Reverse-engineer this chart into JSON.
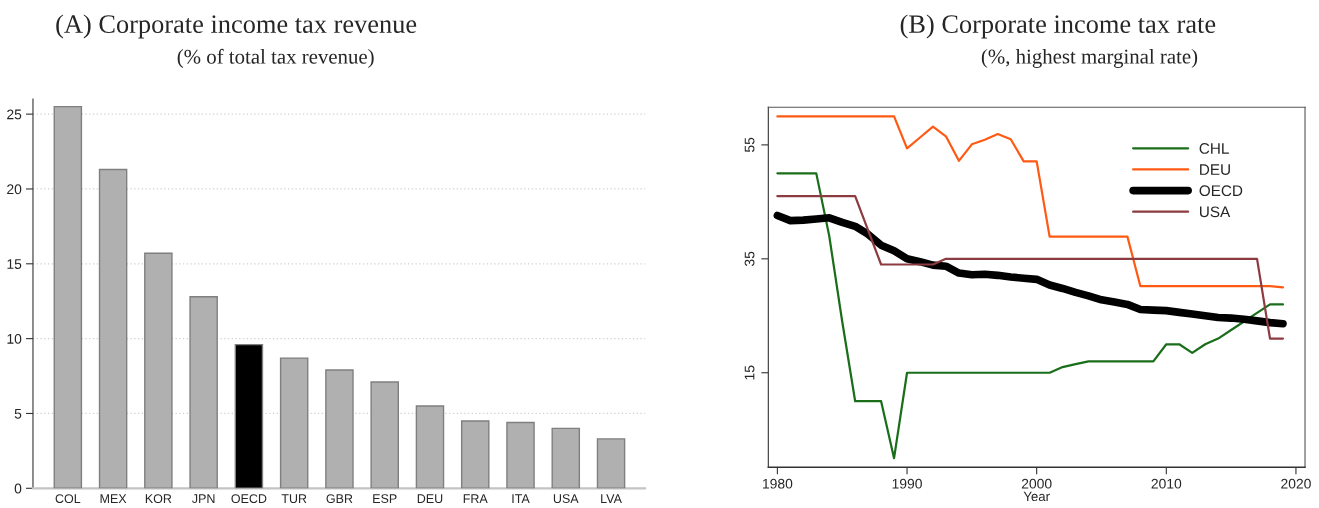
{
  "chart_data": [
    {
      "type": "bar",
      "title": "(A) Corporate income tax revenue",
      "subtitle": "(% of total tax revenue)",
      "categories": [
        "COL",
        "MEX",
        "KOR",
        "JPN",
        "OECD",
        "TUR",
        "GBR",
        "ESP",
        "DEU",
        "FRA",
        "ITA",
        "USA",
        "LVA"
      ],
      "values": [
        25.5,
        21.3,
        15.7,
        12.8,
        9.6,
        8.7,
        7.9,
        7.1,
        5.5,
        4.5,
        4.4,
        4.0,
        3.3
      ],
      "colors": [
        "#b0b0b0",
        "#b0b0b0",
        "#b0b0b0",
        "#b0b0b0",
        "#000000",
        "#b0b0b0",
        "#b0b0b0",
        "#b0b0b0",
        "#b0b0b0",
        "#b0b0b0",
        "#b0b0b0",
        "#b0b0b0",
        "#b0b0b0"
      ],
      "ylim": [
        0,
        26
      ],
      "yticks": [
        0,
        5,
        10,
        15,
        20,
        25
      ],
      "grid": "y"
    },
    {
      "type": "line",
      "title": "(B) Corporate income tax rate",
      "subtitle": "(%, highest marginal rate)",
      "xlabel": "Year",
      "x": [
        1980,
        1981,
        1982,
        1983,
        1984,
        1985,
        1986,
        1987,
        1988,
        1989,
        1990,
        1991,
        1992,
        1993,
        1994,
        1995,
        1996,
        1997,
        1998,
        1999,
        2000,
        2001,
        2002,
        2003,
        2004,
        2005,
        2006,
        2007,
        2008,
        2009,
        2010,
        2011,
        2012,
        2013,
        2014,
        2015,
        2016,
        2017,
        2018,
        2019
      ],
      "series": [
        {
          "name": "CHL",
          "color": "#1a6e1a",
          "values": [
            50,
            50,
            50,
            50,
            39,
            24,
            10,
            10,
            10,
            0,
            15,
            15,
            15,
            15,
            15,
            15,
            15,
            15,
            15,
            15,
            15,
            15,
            16,
            16.5,
            17,
            17,
            17,
            17,
            17,
            17,
            20,
            20,
            18.5,
            20,
            21,
            22.5,
            24,
            25.5,
            27,
            27
          ]
        },
        {
          "name": "DEU",
          "color": "#ff5a14",
          "values": [
            60,
            60,
            60,
            60,
            60,
            60,
            60,
            60,
            60,
            60,
            54.4,
            56.3,
            58.2,
            56.5,
            52.2,
            55.1,
            55.9,
            56.9,
            56.0,
            52.1,
            52.1,
            38.9,
            38.9,
            38.9,
            38.9,
            38.9,
            38.9,
            38.9,
            30.2,
            30.2,
            30.2,
            30.2,
            30.2,
            30.2,
            30.2,
            30.2,
            30.2,
            30.2,
            30.2,
            30.0
          ]
        },
        {
          "name": "OECD",
          "color": "#000000",
          "values": [
            42.6,
            41.7,
            41.8,
            42.0,
            42.2,
            41.4,
            40.7,
            39.3,
            37.4,
            36.4,
            35.0,
            34.5,
            33.9,
            33.7,
            32.5,
            32.2,
            32.3,
            32.1,
            31.8,
            31.6,
            31.4,
            30.4,
            29.8,
            29.1,
            28.5,
            27.8,
            27.4,
            27.0,
            26.1,
            26.0,
            25.9,
            25.6,
            25.3,
            25.0,
            24.7,
            24.6,
            24.4,
            24.1,
            23.8,
            23.6
          ]
        },
        {
          "name": "USA",
          "color": "#8c3c41",
          "values": [
            46,
            46,
            46,
            46,
            46,
            46,
            46,
            40,
            34,
            34,
            34,
            34,
            34,
            35,
            35,
            35,
            35,
            35,
            35,
            35,
            35,
            35,
            35,
            35,
            35,
            35,
            35,
            35,
            35,
            35,
            35,
            35,
            35,
            35,
            35,
            35,
            35,
            35,
            21,
            21
          ]
        }
      ],
      "xlim": [
        1979.3,
        2020.7
      ],
      "xticks": [
        1980,
        1990,
        2000,
        2010,
        2020
      ],
      "ylim": [
        -1.6,
        61.6
      ],
      "yticks": [
        15,
        35,
        55
      ],
      "legend": "top right"
    }
  ]
}
